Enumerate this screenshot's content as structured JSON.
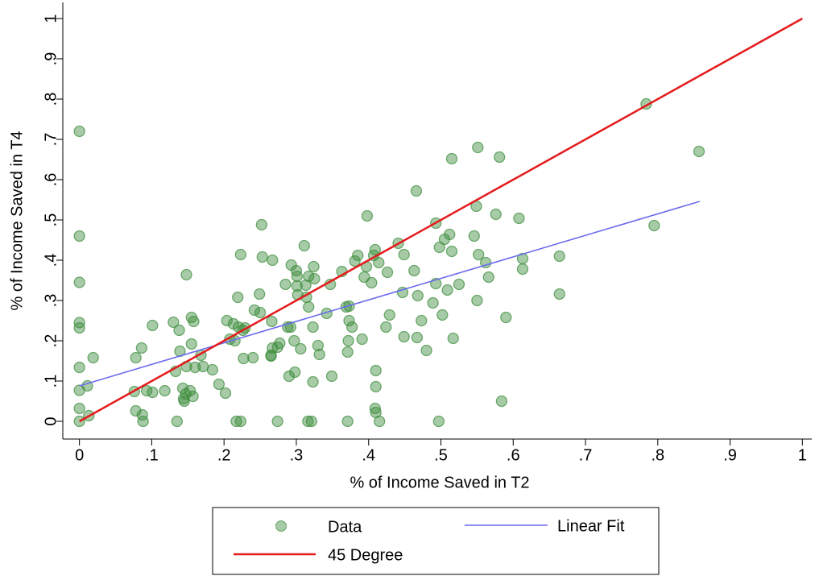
{
  "chart_data": {
    "type": "scatter",
    "x_label": "% of Income Saved in T2",
    "y_label": "% of Income Saved in T4",
    "xlim": [
      -0.023,
      1.013
    ],
    "ylim": [
      -0.044,
      1.04
    ],
    "xticks": [
      0,
      {
        "value": 0.1,
        "label": ".1"
      },
      {
        "value": 0.2,
        "label": ".2"
      },
      {
        "value": 0.3,
        "label": ".3"
      },
      {
        "value": 0.4,
        "label": ".4"
      },
      {
        "value": 0.5,
        "label": ".5"
      },
      {
        "value": 0.6,
        "label": ".6"
      },
      {
        "value": 0.7,
        "label": ".7"
      },
      {
        "value": 0.8,
        "label": ".8"
      },
      {
        "value": 0.9,
        "label": ".9"
      },
      1
    ],
    "yticks": [
      0,
      {
        "value": 0.1,
        "label": ".1"
      },
      {
        "value": 0.2,
        "label": ".2"
      },
      {
        "value": 0.3,
        "label": ".3"
      },
      {
        "value": 0.4,
        "label": ".4"
      },
      {
        "value": 0.5,
        "label": ".5"
      },
      {
        "value": 0.6,
        "label": ".6"
      },
      {
        "value": 0.7,
        "label": ".7"
      },
      {
        "value": 0.8,
        "label": ".8"
      },
      {
        "value": 0.9,
        "label": ".9"
      },
      1
    ],
    "series": [
      {
        "name": "Data",
        "type": "scatter",
        "color": "#3c8c3c",
        "x": [
          0,
          0,
          0,
          0,
          0,
          0,
          0,
          0,
          0,
          0.011,
          0.013,
          0.019,
          0.076,
          0.078,
          0.078,
          0.086,
          0.087,
          0.088,
          0.093,
          0.101,
          0.101,
          0.118,
          0.13,
          0.133,
          0.135,
          0.138,
          0.139,
          0.143,
          0.144,
          0.145,
          0.147,
          0.148,
          0.148,
          0.153,
          0.155,
          0.155,
          0.157,
          0.158,
          0.16,
          0.168,
          0.171,
          0.184,
          0.193,
          0.202,
          0.204,
          0.208,
          0.213,
          0.215,
          0.217,
          0.219,
          0.22,
          0.223,
          0.223,
          0.226,
          0.227,
          0.229,
          0.24,
          0.242,
          0.249,
          0.25,
          0.252,
          0.253,
          0.265,
          0.265,
          0.266,
          0.267,
          0.267,
          0.274,
          0.274,
          0.277,
          0.285,
          0.288,
          0.29,
          0.292,
          0.293,
          0.297,
          0.298,
          0.3,
          0.301,
          0.301,
          0.302,
          0.306,
          0.311,
          0.313,
          0.314,
          0.316,
          0.317,
          0.317,
          0.321,
          0.323,
          0.323,
          0.324,
          0.325,
          0.33,
          0.332,
          0.342,
          0.347,
          0.349,
          0.363,
          0.369,
          0.371,
          0.371,
          0.372,
          0.373,
          0.373,
          0.377,
          0.381,
          0.385,
          0.391,
          0.394,
          0.397,
          0.398,
          0.404,
          0.407,
          0.409,
          0.409,
          0.41,
          0.41,
          0.41,
          0.414,
          0.415,
          0.424,
          0.426,
          0.429,
          0.441,
          0.447,
          0.449,
          0.449,
          0.463,
          0.466,
          0.467,
          0.468,
          0.473,
          0.48,
          0.489,
          0.493,
          0.493,
          0.497,
          0.498,
          0.502,
          0.505,
          0.509,
          0.512,
          0.515,
          0.515,
          0.517,
          0.525,
          0.546,
          0.549,
          0.55,
          0.551,
          0.552,
          0.562,
          0.566,
          0.576,
          0.581,
          0.584,
          0.59,
          0.608,
          0.613,
          0.613,
          0.664,
          0.664,
          0.784,
          0.795,
          0.857
        ],
        "values": [
          0.72,
          0.46,
          0.345,
          0.245,
          0.232,
          0.134,
          0.077,
          0.032,
          0,
          0.088,
          0.014,
          0.158,
          0.074,
          0.158,
          0.026,
          0.182,
          0.016,
          0,
          0.076,
          0.072,
          0.238,
          0.076,
          0.246,
          0.124,
          0,
          0.226,
          0.174,
          0.082,
          0.056,
          0.05,
          0.068,
          0.136,
          0.364,
          0.076,
          0.192,
          0.258,
          0.062,
          0.248,
          0.134,
          0.164,
          0.136,
          0.128,
          0.092,
          0.07,
          0.25,
          0.204,
          0.242,
          0.2,
          0,
          0.308,
          0.234,
          0,
          0.414,
          0.226,
          0.156,
          0.232,
          0.158,
          0.276,
          0.316,
          0.27,
          0.488,
          0.408,
          0.164,
          0.162,
          0.248,
          0.182,
          0.4,
          0,
          0.184,
          0.194,
          0.34,
          0.234,
          0.112,
          0.234,
          0.388,
          0.2,
          0.122,
          0.374,
          0.36,
          0.336,
          0.314,
          0.18,
          0.436,
          0.338,
          0.308,
          0,
          0.284,
          0.36,
          0,
          0.098,
          0.234,
          0.384,
          0.354,
          0.188,
          0.166,
          0.268,
          0.34,
          0.112,
          0.372,
          0.284,
          0,
          0.172,
          0.2,
          0.286,
          0.25,
          0.234,
          0.398,
          0.412,
          0.204,
          0.358,
          0.384,
          0.51,
          0.344,
          0.412,
          0.426,
          0.032,
          0.086,
          0.126,
          0.022,
          0.394,
          0,
          0.234,
          0.37,
          0.264,
          0.442,
          0.32,
          0.414,
          0.21,
          0.374,
          0.572,
          0.208,
          0.312,
          0.25,
          0.176,
          0.294,
          0.342,
          0.492,
          0,
          0.432,
          0.264,
          0.452,
          0.326,
          0.464,
          0.652,
          0.422,
          0.206,
          0.34,
          0.46,
          0.534,
          0.3,
          0.68,
          0.414,
          0.394,
          0.358,
          0.514,
          0.656,
          0.05,
          0.258,
          0.504,
          0.404,
          0.378,
          0.41,
          0.316,
          0.788,
          0.486,
          0.67
        ]
      },
      {
        "name": "Linear Fit",
        "type": "line",
        "color": "#6b6bf0",
        "x": [
          0,
          0.858
        ],
        "values": [
          0.088,
          0.546
        ]
      },
      {
        "name": "45 Degree",
        "type": "line",
        "color": "#e41a1c",
        "x": [
          0,
          1
        ],
        "values": [
          0,
          1
        ]
      }
    ]
  }
}
